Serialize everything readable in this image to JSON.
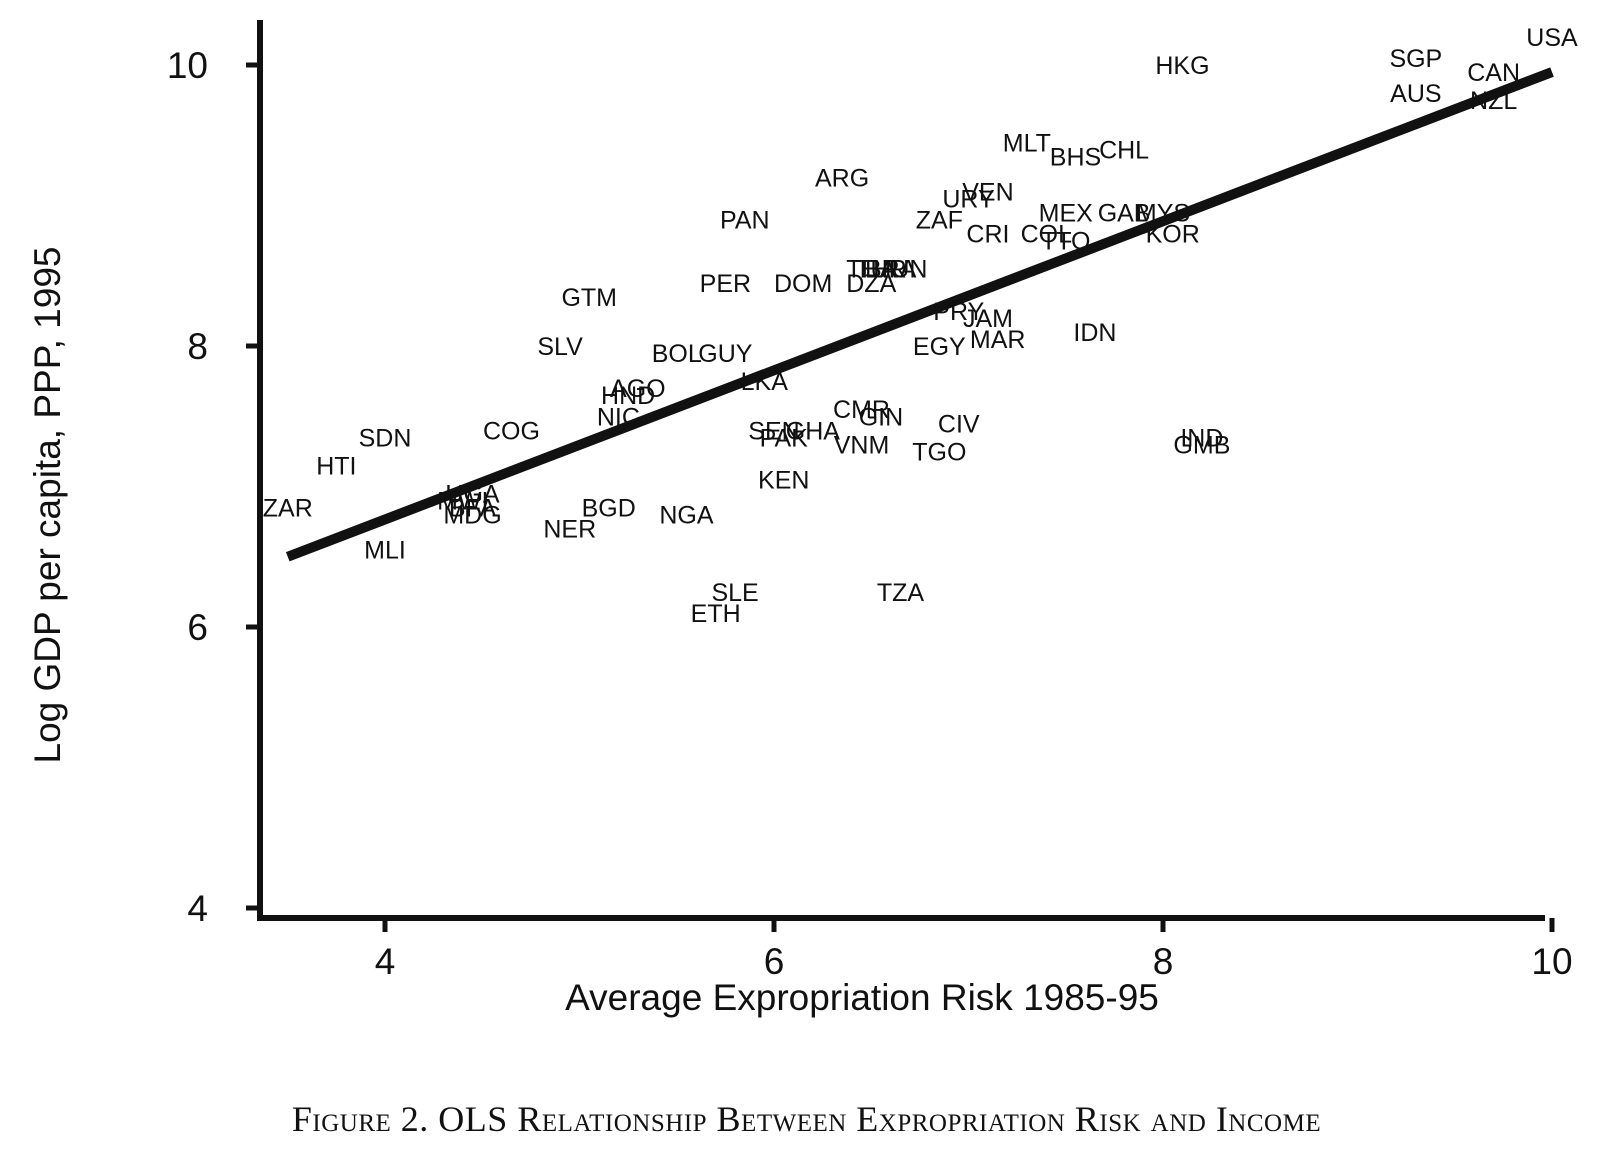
{
  "caption": "Figure 2. OLS Relationship Between Expropriation Risk and Income",
  "chart_data": {
    "type": "scatter",
    "title": "",
    "xlabel": "Average Expropriation Risk 1985-95",
    "ylabel": "Log GDP per capita, PPP, 1995",
    "xlim": [
      3.35,
      10.15
    ],
    "ylim": [
      3.8,
      10.5
    ],
    "xticks": [
      4,
      6,
      8,
      10
    ],
    "yticks": [
      4,
      6,
      8,
      10
    ],
    "grid": false,
    "legend": "none",
    "marker": "country code label",
    "fit_line": {
      "type": "OLS",
      "x": [
        3.5,
        10.0
      ],
      "y": [
        6.5,
        9.95
      ]
    },
    "points": [
      {
        "label": "USA",
        "x": 10.0,
        "y": 10.2
      },
      {
        "label": "SGP",
        "x": 9.3,
        "y": 10.05
      },
      {
        "label": "AUS",
        "x": 9.3,
        "y": 9.8
      },
      {
        "label": "CAN",
        "x": 9.7,
        "y": 9.95
      },
      {
        "label": "NZL",
        "x": 9.7,
        "y": 9.75
      },
      {
        "label": "HKG",
        "x": 8.1,
        "y": 10.0
      },
      {
        "label": "MLT",
        "x": 7.3,
        "y": 9.45
      },
      {
        "label": "BHS",
        "x": 7.55,
        "y": 9.35
      },
      {
        "label": "CHL",
        "x": 7.8,
        "y": 9.4
      },
      {
        "label": "ARG",
        "x": 6.35,
        "y": 9.2
      },
      {
        "label": "VEN",
        "x": 7.1,
        "y": 9.1
      },
      {
        "label": "URY",
        "x": 7.0,
        "y": 9.05
      },
      {
        "label": "MEX",
        "x": 7.5,
        "y": 8.95
      },
      {
        "label": "GAB",
        "x": 7.8,
        "y": 8.95
      },
      {
        "label": "MYS",
        "x": 8.0,
        "y": 8.95
      },
      {
        "label": "ZAF",
        "x": 6.85,
        "y": 8.9
      },
      {
        "label": "CRI",
        "x": 7.1,
        "y": 8.8
      },
      {
        "label": "COL",
        "x": 7.4,
        "y": 8.8
      },
      {
        "label": "TTO",
        "x": 7.5,
        "y": 8.75
      },
      {
        "label": "KOR",
        "x": 8.05,
        "y": 8.8
      },
      {
        "label": "PAN",
        "x": 5.85,
        "y": 8.9
      },
      {
        "label": "THA",
        "x": 6.5,
        "y": 8.55
      },
      {
        "label": "TUR",
        "x": 6.55,
        "y": 8.55
      },
      {
        "label": "BRA",
        "x": 6.6,
        "y": 8.55
      },
      {
        "label": "HUN",
        "x": 6.65,
        "y": 8.55
      },
      {
        "label": "DZA",
        "x": 6.5,
        "y": 8.45
      },
      {
        "label": "DOM",
        "x": 6.15,
        "y": 8.45
      },
      {
        "label": "PER",
        "x": 5.75,
        "y": 8.45
      },
      {
        "label": "GTM",
        "x": 5.05,
        "y": 8.35
      },
      {
        "label": "PRY",
        "x": 6.95,
        "y": 8.25
      },
      {
        "label": "JAM",
        "x": 7.1,
        "y": 8.2
      },
      {
        "label": "MAR",
        "x": 7.15,
        "y": 8.05
      },
      {
        "label": "EGY",
        "x": 6.85,
        "y": 8.0
      },
      {
        "label": "IDN",
        "x": 7.65,
        "y": 8.1
      },
      {
        "label": "SLV",
        "x": 4.9,
        "y": 8.0
      },
      {
        "label": "BOL",
        "x": 5.5,
        "y": 7.95
      },
      {
        "label": "GUY",
        "x": 5.75,
        "y": 7.95
      },
      {
        "label": "AGO",
        "x": 5.3,
        "y": 7.7
      },
      {
        "label": "HND",
        "x": 5.25,
        "y": 7.65
      },
      {
        "label": "LKA",
        "x": 5.95,
        "y": 7.75
      },
      {
        "label": "NIC",
        "x": 5.2,
        "y": 7.5
      },
      {
        "label": "COG",
        "x": 4.65,
        "y": 7.4
      },
      {
        "label": "SDN",
        "x": 4.0,
        "y": 7.35
      },
      {
        "label": "HTI",
        "x": 3.75,
        "y": 7.15
      },
      {
        "label": "ZAR",
        "x": 3.5,
        "y": 6.85
      },
      {
        "label": "UGA",
        "x": 4.45,
        "y": 6.95
      },
      {
        "label": "MWI",
        "x": 4.4,
        "y": 6.9
      },
      {
        "label": "BFA",
        "x": 4.45,
        "y": 6.85
      },
      {
        "label": "MDG",
        "x": 4.45,
        "y": 6.8
      },
      {
        "label": "MLI",
        "x": 4.0,
        "y": 6.55
      },
      {
        "label": "BGD",
        "x": 5.15,
        "y": 6.85
      },
      {
        "label": "NER",
        "x": 4.95,
        "y": 6.7
      },
      {
        "label": "NGA",
        "x": 5.55,
        "y": 6.8
      },
      {
        "label": "SEN",
        "x": 6.0,
        "y": 7.4
      },
      {
        "label": "PAK",
        "x": 6.05,
        "y": 7.35
      },
      {
        "label": "GHA",
        "x": 6.2,
        "y": 7.4
      },
      {
        "label": "CMR",
        "x": 6.45,
        "y": 7.55
      },
      {
        "label": "GIN",
        "x": 6.55,
        "y": 7.5
      },
      {
        "label": "VNM",
        "x": 6.45,
        "y": 7.3
      },
      {
        "label": "KEN",
        "x": 6.05,
        "y": 7.05
      },
      {
        "label": "CIV",
        "x": 6.95,
        "y": 7.45
      },
      {
        "label": "TGO",
        "x": 6.85,
        "y": 7.25
      },
      {
        "label": "IND",
        "x": 8.2,
        "y": 7.35
      },
      {
        "label": "GMB",
        "x": 8.2,
        "y": 7.3
      },
      {
        "label": "SLE",
        "x": 5.8,
        "y": 6.25
      },
      {
        "label": "ETH",
        "x": 5.7,
        "y": 6.1
      },
      {
        "label": "TZA",
        "x": 6.65,
        "y": 6.25
      }
    ]
  }
}
